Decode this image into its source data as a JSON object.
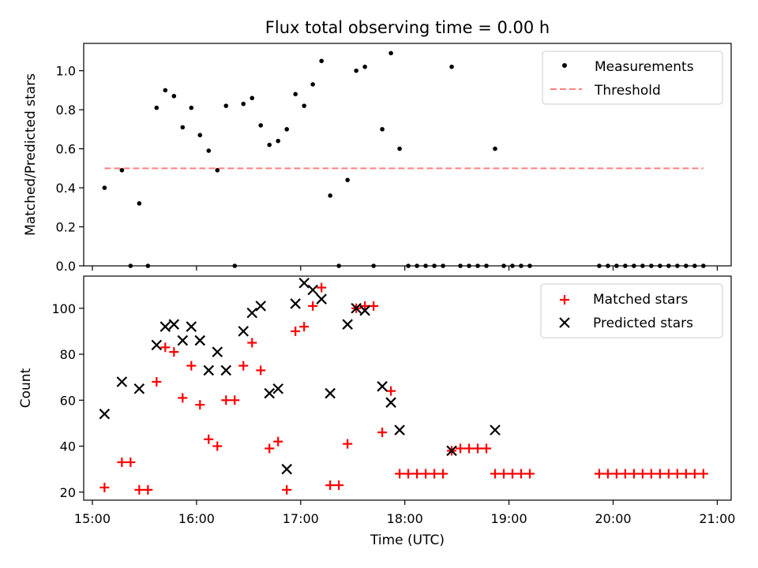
{
  "title": "Flux total observing time = 0.00 h",
  "colors": {
    "measurement": "#000000",
    "threshold": "#ff8080",
    "matched": "#ff0000",
    "predicted": "#000000"
  },
  "chart_data": [
    {
      "type": "scatter",
      "panel": "top",
      "title": "Flux total observing time = 0.00 h",
      "xlabel": "",
      "ylabel": "Matched/Predicted stars",
      "xlim": [
        "14:55",
        "21:08"
      ],
      "ylim": [
        0,
        1.14
      ],
      "yticks": [
        0.0,
        0.2,
        0.4,
        0.6,
        0.8,
        1.0
      ],
      "ytick_labels": [
        "0.0",
        "0.2",
        "0.4",
        "0.6",
        "0.8",
        "1.0"
      ],
      "grid": false,
      "legend_position": "top-right",
      "series": [
        {
          "name": "Measurements",
          "marker": "dot",
          "x": [
            "15:07",
            "15:17",
            "15:22",
            "15:27",
            "15:32",
            "15:37",
            "15:42",
            "15:47",
            "15:52",
            "15:57",
            "16:02",
            "16:07",
            "16:12",
            "16:17",
            "16:22",
            "16:27",
            "16:32",
            "16:37",
            "16:42",
            "16:47",
            "16:52",
            "16:57",
            "17:02",
            "17:07",
            "17:12",
            "17:17",
            "17:22",
            "17:27",
            "17:32",
            "17:37",
            "17:42",
            "17:47",
            "17:52",
            "17:57",
            "18:02",
            "18:07",
            "18:12",
            "18:17",
            "18:22",
            "18:27",
            "18:32",
            "18:37",
            "18:42",
            "18:47",
            "18:52",
            "18:57",
            "19:02",
            "19:07",
            "19:12",
            "19:52",
            "19:57",
            "20:02",
            "20:07",
            "20:12",
            "20:17",
            "20:22",
            "20:27",
            "20:32",
            "20:37",
            "20:42",
            "20:47",
            "20:52"
          ],
          "y": [
            0.4,
            0.49,
            0.0,
            0.32,
            0.0,
            0.81,
            0.9,
            0.87,
            0.71,
            0.81,
            0.67,
            0.59,
            0.49,
            0.82,
            0.0,
            0.83,
            0.86,
            0.72,
            0.62,
            0.64,
            0.7,
            0.88,
            0.82,
            0.93,
            1.05,
            0.36,
            0.0,
            0.44,
            1.0,
            1.02,
            0.0,
            0.7,
            1.09,
            0.6,
            0.0,
            0.0,
            0.0,
            0.0,
            0.0,
            1.02,
            0.0,
            0.0,
            0.0,
            0.0,
            0.6,
            0.0,
            0.0,
            0.0,
            0.0,
            0.0,
            0.0,
            0.0,
            0.0,
            0.0,
            0.0,
            0.0,
            0.0,
            0.0,
            0.0,
            0.0,
            0.0,
            0.0
          ]
        },
        {
          "name": "Threshold",
          "marker": "dashed-line",
          "x": [
            "15:07",
            "20:52"
          ],
          "y": [
            0.5,
            0.5
          ]
        }
      ]
    },
    {
      "type": "scatter",
      "panel": "bottom",
      "xlabel": "Time (UTC)",
      "ylabel": "Count",
      "xlim": [
        "14:55",
        "21:08"
      ],
      "ylim": [
        16.5,
        114
      ],
      "xticks": [
        "15:00",
        "16:00",
        "17:00",
        "18:00",
        "19:00",
        "20:00",
        "21:00"
      ],
      "yticks": [
        20,
        40,
        60,
        80,
        100
      ],
      "ytick_labels": [
        "20",
        "40",
        "60",
        "80",
        "100"
      ],
      "grid": false,
      "legend_position": "top-right",
      "series": [
        {
          "name": "Matched stars",
          "marker": "plus",
          "x": [
            "15:07",
            "15:17",
            "15:22",
            "15:27",
            "15:32",
            "15:37",
            "15:42",
            "15:47",
            "15:52",
            "15:57",
            "16:02",
            "16:07",
            "16:12",
            "16:17",
            "16:22",
            "16:27",
            "16:32",
            "16:37",
            "16:42",
            "16:47",
            "16:52",
            "16:57",
            "17:02",
            "17:07",
            "17:12",
            "17:17",
            "17:22",
            "17:27",
            "17:32",
            "17:37",
            "17:42",
            "17:47",
            "17:52",
            "17:57",
            "18:02",
            "18:07",
            "18:12",
            "18:17",
            "18:22",
            "18:27",
            "18:32",
            "18:37",
            "18:42",
            "18:47",
            "18:52",
            "18:57",
            "19:02",
            "19:07",
            "19:12",
            "19:52",
            "19:57",
            "20:02",
            "20:07",
            "20:12",
            "20:17",
            "20:22",
            "20:27",
            "20:32",
            "20:37",
            "20:42",
            "20:47",
            "20:52"
          ],
          "y": [
            22,
            33,
            33,
            21,
            21,
            68,
            83,
            81,
            61,
            75,
            58,
            43,
            40,
            60,
            60,
            75,
            85,
            73,
            39,
            42,
            21,
            90,
            92,
            101,
            109,
            23,
            23,
            41,
            100,
            101,
            101,
            46,
            64,
            28,
            28,
            28,
            28,
            28,
            28,
            38,
            39,
            39,
            39,
            39,
            28,
            28,
            28,
            28,
            28,
            28,
            28,
            28,
            28,
            28,
            28,
            28,
            28,
            28,
            28,
            28,
            28,
            28
          ]
        },
        {
          "name": "Predicted stars",
          "marker": "x",
          "x": [
            "15:07",
            "15:17",
            "15:27",
            "15:37",
            "15:42",
            "15:47",
            "15:52",
            "15:57",
            "16:02",
            "16:07",
            "16:12",
            "16:17",
            "16:27",
            "16:32",
            "16:37",
            "16:42",
            "16:47",
            "16:52",
            "16:57",
            "17:02",
            "17:07",
            "17:12",
            "17:17",
            "17:27",
            "17:32",
            "17:37",
            "17:47",
            "17:52",
            "17:57",
            "18:27",
            "18:52"
          ],
          "y": [
            54,
            68,
            65,
            84,
            92,
            93,
            86,
            92,
            86,
            73,
            81,
            73,
            90,
            98,
            101,
            63,
            65,
            30,
            102,
            111,
            108,
            104,
            63,
            93,
            100,
            99,
            66,
            59,
            47,
            38,
            47
          ]
        }
      ]
    }
  ]
}
